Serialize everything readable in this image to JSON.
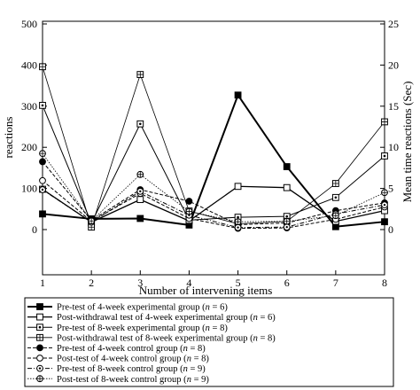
{
  "chart_data": {
    "type": "line",
    "title": "",
    "x": [
      1,
      2,
      3,
      4,
      5,
      6,
      7,
      8
    ],
    "xlabel": "Number of intervening items",
    "ylabel": "reactions",
    "y2label": "Mean time reactions (Sec)",
    "xlim": [
      1,
      8
    ],
    "ylim": [
      -100,
      500
    ],
    "y2lim": [
      -5,
      25
    ],
    "yticks": [
      0,
      100,
      200,
      300,
      400,
      500
    ],
    "y2ticks": [
      0,
      5,
      10,
      15,
      20,
      25
    ],
    "grid": false,
    "legend": "below",
    "series": [
      {
        "name_pre": "Pre-test of 4-week experimental group (",
        "name_n": "n",
        "name_post": " = 6)",
        "values": [
          38,
          26,
          27,
          11,
          327,
          153,
          7,
          19
        ],
        "marker": "square-filled",
        "dash": "solid",
        "width": 2.0
      },
      {
        "name_pre": "Post-withdrawal test of 4-week experimental group (",
        "name_n": "n",
        "name_post": " = 6)",
        "values": [
          98,
          18,
          73,
          21,
          105,
          102,
          20,
          46
        ],
        "marker": "square-open",
        "dash": "solid",
        "width": 1.3
      },
      {
        "name_pre": "Pre-test of 8-week experimental group (",
        "name_n": "n",
        "name_post": " = 8)",
        "values": [
          302,
          16,
          257,
          23,
          30,
          32,
          78,
          179
        ],
        "marker": "square-dot",
        "dash": "solid",
        "width": 1.0
      },
      {
        "name_pre": "Post-withdrawal test of 8-week experimental group (",
        "name_n": "n",
        "name_post": " = 8)",
        "values": [
          396,
          6,
          377,
          45,
          14,
          20,
          112,
          262
        ],
        "marker": "square-plus",
        "dash": "solid",
        "width": 0.8
      },
      {
        "name_pre": "Pre-test of 4-week control group (",
        "name_n": "n",
        "name_post": " = 8)",
        "values": [
          165,
          22,
          97,
          69,
          12,
          16,
          46,
          65
        ],
        "marker": "circle-filled",
        "dash": "dashed",
        "width": 1.0
      },
      {
        "name_pre": "Post-test of 4-week control group (",
        "name_n": "n",
        "name_post": " = 8)",
        "values": [
          119,
          20,
          88,
          27,
          3,
          4,
          25,
          55
        ],
        "marker": "circle-open",
        "dash": "dashed",
        "width": 1.0
      },
      {
        "name_pre": "Pre-test of 8-week control group (",
        "name_n": "n",
        "name_post": " = 9)",
        "values": [
          97,
          18,
          93,
          35,
          5,
          6,
          38,
          60
        ],
        "marker": "circle-dot",
        "dash": "dashdot",
        "width": 1.0
      },
      {
        "name_pre": "Post-test of 8-week control group (",
        "name_n": "n",
        "name_post": " = 9)",
        "values": [
          185,
          21,
          134,
          44,
          19,
          20,
          34,
          90
        ],
        "marker": "circle-plus",
        "dash": "dotted",
        "width": 0.8
      }
    ]
  }
}
